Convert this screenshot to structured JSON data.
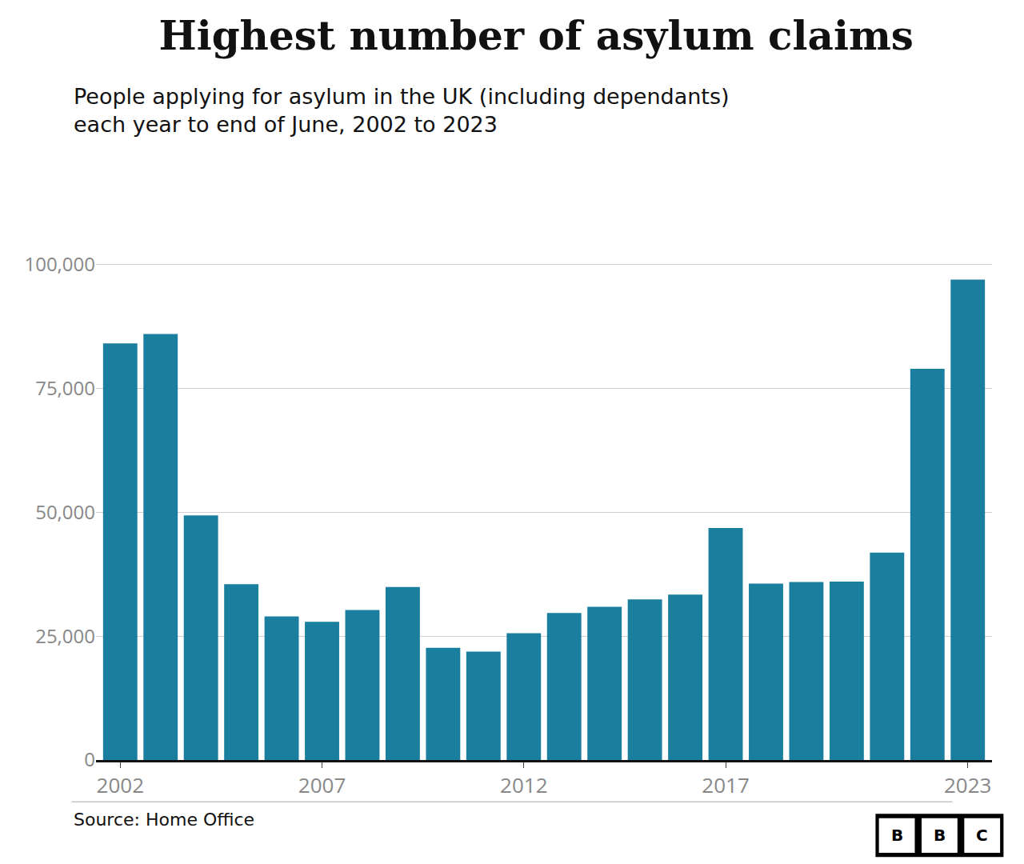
{
  "chart_data": {
    "type": "bar",
    "title": "Highest number of asylum claims",
    "subtitle": "People applying for asylum in the UK (including dependants)\neach year to end of June, 2002 to 2023",
    "source": "Source: Home Office",
    "annotations": [
      "BBC"
    ],
    "categories": [
      "2002",
      null,
      null,
      null,
      null,
      "2007",
      null,
      null,
      null,
      null,
      "2012",
      null,
      null,
      null,
      null,
      "2017",
      null,
      null,
      null,
      null,
      null,
      "2023"
    ],
    "values": [
      84130,
      86000,
      49405,
      35500,
      29000,
      27905,
      30285,
      34945,
      22645,
      21895,
      25595,
      29680,
      30945,
      32415,
      33395,
      46855,
      35625,
      35940,
      36035,
      41885,
      79000,
      97000
    ],
    "color": "#1a7f9e",
    "ylim": [
      0,
      105000
    ],
    "yticks": [
      0,
      {
        "value": 25000,
        "label": "25,000"
      },
      {
        "value": 50000,
        "label": "50,000"
      },
      {
        "value": 75000,
        "label": "75,000"
      },
      {
        "value": 100000,
        "label": "100,000"
      }
    ],
    "grid": true
  }
}
